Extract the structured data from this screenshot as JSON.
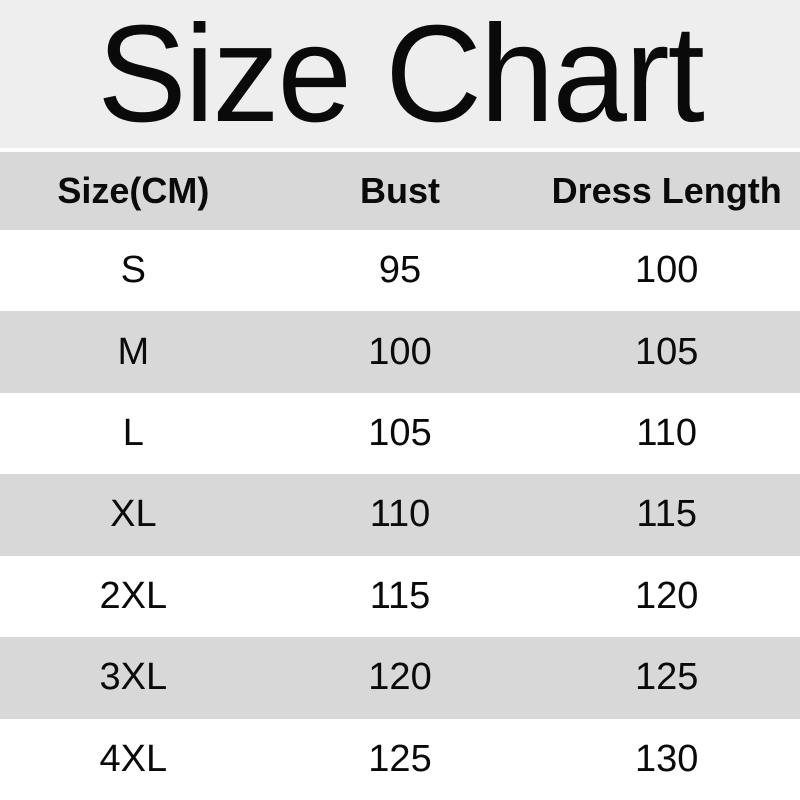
{
  "page_title": "Size Chart",
  "chart_data": {
    "type": "table",
    "title": "Size Chart",
    "unit": "CM",
    "columns": [
      "Size(CM)",
      "Bust",
      "Dress Length"
    ],
    "rows": [
      [
        "S",
        "95",
        "100"
      ],
      [
        "M",
        "100",
        "105"
      ],
      [
        "L",
        "105",
        "110"
      ],
      [
        "XL",
        "110",
        "115"
      ],
      [
        "2XL",
        "115",
        "120"
      ],
      [
        "3XL",
        "120",
        "125"
      ],
      [
        "4XL",
        "125",
        "130"
      ]
    ]
  },
  "colors": {
    "title_band_bg": "#eeeeee",
    "header_row_bg": "#d8d8d8",
    "alt_row_bg": "#d8d8d8",
    "row_bg": "#ffffff",
    "text": "#0a0a0a",
    "separator": "#ffffff"
  }
}
